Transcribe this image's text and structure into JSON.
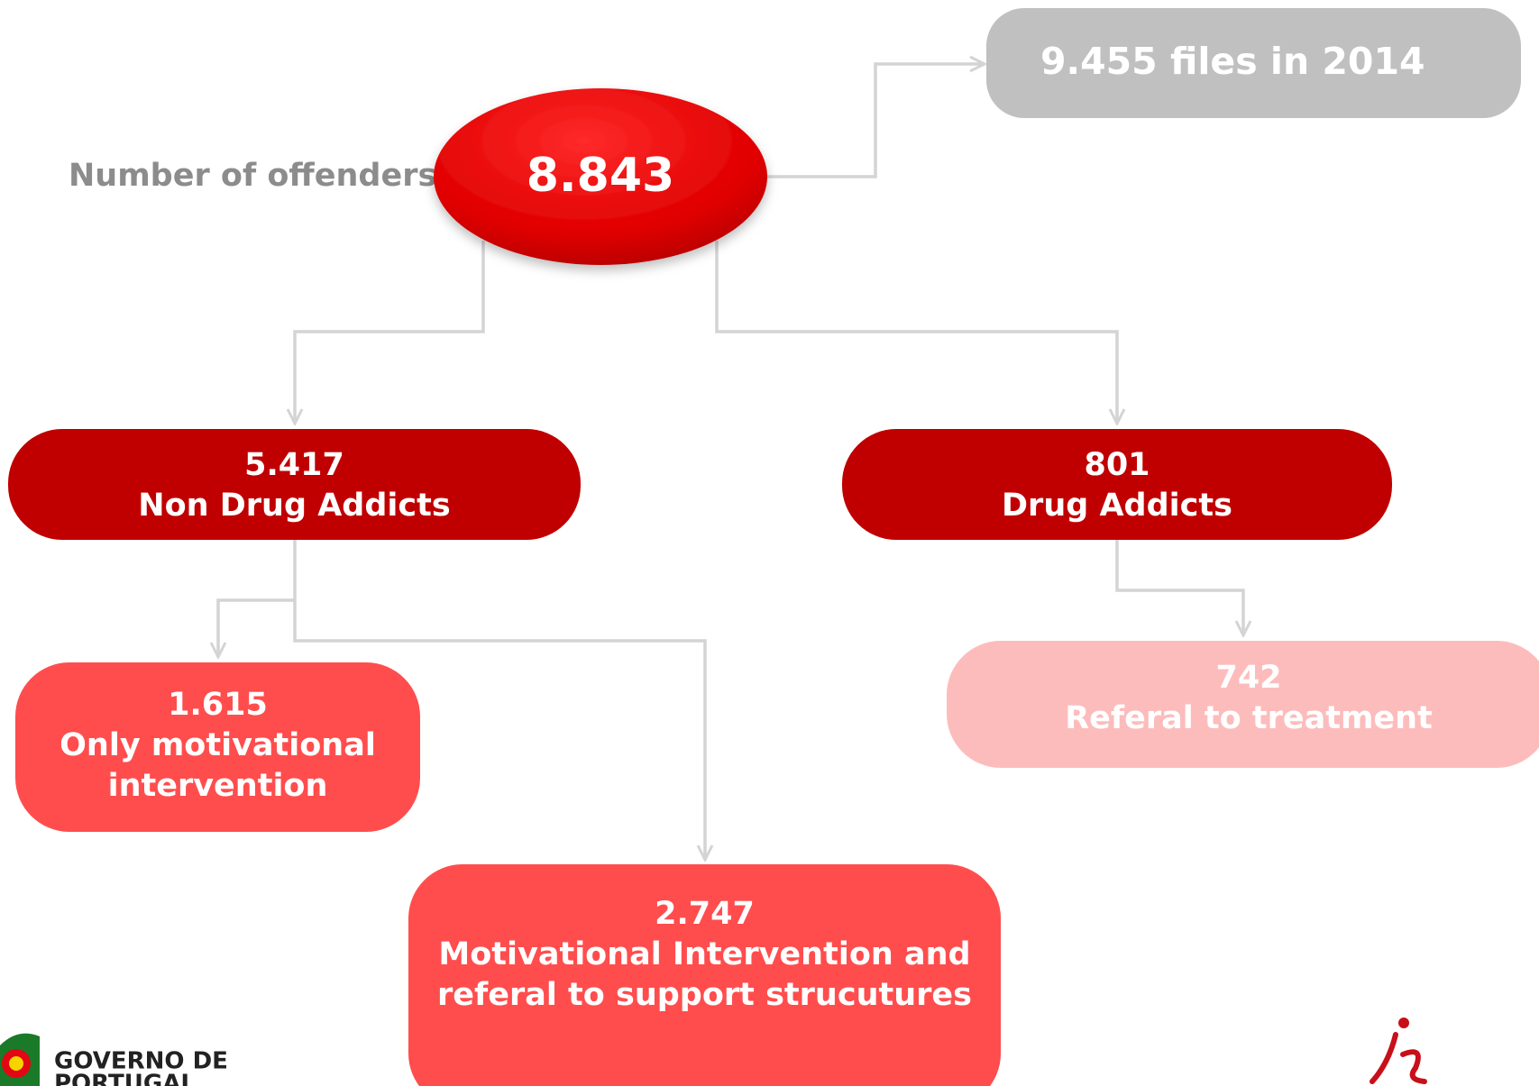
{
  "root": {
    "label": "Number of offenders",
    "value": "8.843"
  },
  "files": {
    "label": "9.455 files in 2014"
  },
  "nodes": [
    {
      "value": "5.417",
      "lines": [
        "Non Drug Addicts"
      ]
    },
    {
      "value": "801",
      "lines": [
        "Drug Addicts"
      ]
    },
    {
      "value": "1.615",
      "lines": [
        "Only motivational",
        "intervention"
      ]
    },
    {
      "value": "742",
      "lines": [
        "Referal to treatment"
      ]
    },
    {
      "value": "2.747",
      "lines": [
        "Motivational Intervention and",
        "referal to support strucutures"
      ]
    }
  ],
  "logo": {
    "line1": "GOVERNO DE",
    "line2": "PORTUGAL"
  }
}
